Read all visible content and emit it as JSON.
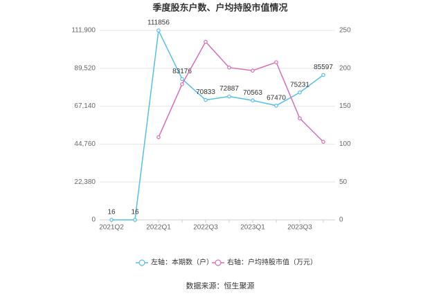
{
  "chart_data": {
    "type": "line",
    "title": "季度股东户数、户均持股市值情况",
    "source": "数据来源：恒生聚源",
    "categories": [
      "2021Q2",
      null,
      "2022Q1",
      null,
      "2022Q3",
      null,
      "2023Q1",
      null,
      "2023Q3",
      null
    ],
    "series": [
      {
        "name": "左轴：本期数（户）",
        "color": "#56bdea",
        "values": [
          16,
          16,
          111856,
          83176,
          70833,
          72887,
          70563,
          67470,
          75231,
          85597
        ]
      },
      {
        "name": "右轴：户均持股市值（万元）",
        "color": "#d76cb4",
        "axis": "y2",
        "values": [
          null,
          null,
          109,
          179,
          235,
          201,
          197,
          208,
          134,
          103
        ]
      }
    ],
    "ylim": [
      0,
      111900
    ],
    "yticks": [
      0,
      {
        "value": 22380,
        "label": "22,380"
      },
      {
        "value": 44760,
        "label": "44,760"
      },
      {
        "value": 67140,
        "label": "67,140"
      },
      {
        "value": 89520,
        "label": "89,520"
      },
      {
        "value": 111900,
        "label": "111,900"
      }
    ],
    "y2lim": [
      0,
      250
    ],
    "y2ticks": [
      0,
      50,
      100,
      150,
      200,
      250
    ],
    "grid": true,
    "legend": "bottom"
  }
}
